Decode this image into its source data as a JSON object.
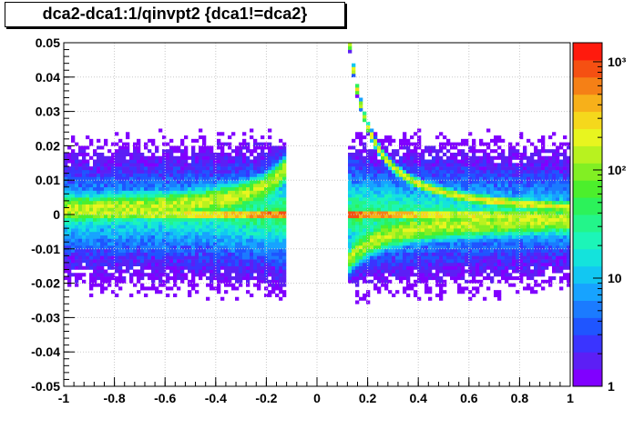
{
  "chart_data": {
    "type": "heatmap",
    "title": "dca2-dca1:1/qinvpt2 {dca1!=dca2}",
    "xlabel": "",
    "ylabel": "",
    "xlim": [
      -1,
      1
    ],
    "ylim": [
      -0.05,
      0.05
    ],
    "x_ticks": [
      -1,
      -0.8,
      -0.6,
      -0.4,
      -0.2,
      0,
      0.2,
      0.4,
      0.6,
      0.8,
      1
    ],
    "x_tick_labels": [
      "-1",
      "-0.8",
      "-0.6",
      "-0.4",
      "-0.2",
      "0",
      "0.2",
      "0.4",
      "0.6",
      "0.8",
      "1"
    ],
    "y_ticks": [
      -0.05,
      -0.04,
      -0.03,
      -0.02,
      -0.01,
      0,
      0.01,
      0.02,
      0.03,
      0.04,
      0.05
    ],
    "y_tick_labels": [
      "-0.05",
      "-0.04",
      "-0.03",
      "-0.02",
      "-0.01",
      "0",
      "0.01",
      "0.02",
      "0.03",
      "0.04",
      "0.05"
    ],
    "grid": true,
    "z_scale": "log",
    "z_range": [
      1,
      1500
    ],
    "z_tick_labels": [
      "1",
      "10",
      "10²",
      "10³"
    ],
    "z_ticks": [
      1,
      10,
      100,
      1000
    ],
    "empty_band_x": [
      -0.12,
      0.12
    ],
    "features": [
      {
        "name": "central ridge",
        "y": 0,
        "x_range": [
          -1,
          1
        ],
        "peak_count_near_x": 0.15,
        "peak_level": 1000
      },
      {
        "name": "negative curved band",
        "relation": "y = -0.0017 / x",
        "x_range": [
          -1,
          -0.12
        ],
        "level": 100
      },
      {
        "name": "positive curved band",
        "relation": "y = -0.0017 / x",
        "x_range": [
          0.12,
          1
        ],
        "level": 100
      },
      {
        "name": "secondary positive band",
        "relation": "y = 0.0023 / x^1.5 (approx)",
        "x_range": [
          0.15,
          0.5
        ],
        "level": 200
      }
    ]
  },
  "colors": {
    "palette": [
      "#8000ff",
      "#5c1ff5",
      "#3a34ff",
      "#1f55ff",
      "#1b7bff",
      "#17a3ff",
      "#12c7f2",
      "#14e3dc",
      "#1cf5b8",
      "#23f58a",
      "#2cf25a",
      "#4cef2c",
      "#82ef23",
      "#b8f21f",
      "#e8f51f",
      "#f5d81c",
      "#f7b01a",
      "#f58016",
      "#f55012",
      "#ff1a0d"
    ],
    "grid": "#c8c8c8",
    "axis": "#000000"
  }
}
